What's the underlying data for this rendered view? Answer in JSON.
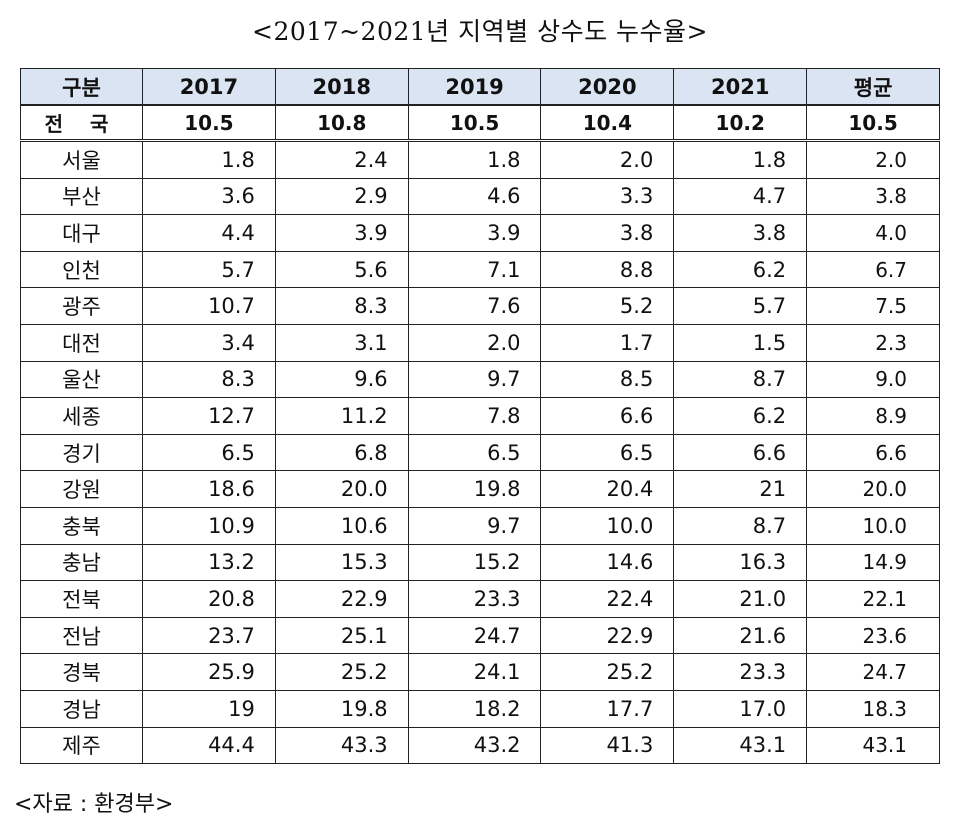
{
  "title": "<2017~2021년 지역별 상수도 누수율>",
  "headers": [
    "구분",
    "2017",
    "2018",
    "2019",
    "2020",
    "2021",
    "평균"
  ],
  "total": {
    "label": "전 국",
    "values": [
      "10.5",
      "10.8",
      "10.5",
      "10.4",
      "10.2",
      "10.5"
    ]
  },
  "rows": [
    {
      "label": "서울",
      "values": [
        "1.8",
        "2.4",
        "1.8",
        "2.0",
        "1.8",
        "2.0"
      ]
    },
    {
      "label": "부산",
      "values": [
        "3.6",
        "2.9",
        "4.6",
        "3.3",
        "4.7",
        "3.8"
      ]
    },
    {
      "label": "대구",
      "values": [
        "4.4",
        "3.9",
        "3.9",
        "3.8",
        "3.8",
        "4.0"
      ]
    },
    {
      "label": "인천",
      "values": [
        "5.7",
        "5.6",
        "7.1",
        "8.8",
        "6.2",
        "6.7"
      ]
    },
    {
      "label": "광주",
      "values": [
        "10.7",
        "8.3",
        "7.6",
        "5.2",
        "5.7",
        "7.5"
      ]
    },
    {
      "label": "대전",
      "values": [
        "3.4",
        "3.1",
        "2.0",
        "1.7",
        "1.5",
        "2.3"
      ]
    },
    {
      "label": "울산",
      "values": [
        "8.3",
        "9.6",
        "9.7",
        "8.5",
        "8.7",
        "9.0"
      ]
    },
    {
      "label": "세종",
      "values": [
        "12.7",
        "11.2",
        "7.8",
        "6.6",
        "6.2",
        "8.9"
      ]
    },
    {
      "label": "경기",
      "values": [
        "6.5",
        "6.8",
        "6.5",
        "6.5",
        "6.6",
        "6.6"
      ]
    },
    {
      "label": "강원",
      "values": [
        "18.6",
        "20.0",
        "19.8",
        "20.4",
        "21",
        "20.0"
      ]
    },
    {
      "label": "충북",
      "values": [
        "10.9",
        "10.6",
        "9.7",
        "10.0",
        "8.7",
        "10.0"
      ]
    },
    {
      "label": "충남",
      "values": [
        "13.2",
        "15.3",
        "15.2",
        "14.6",
        "16.3",
        "14.9"
      ]
    },
    {
      "label": "전북",
      "values": [
        "20.8",
        "22.9",
        "23.3",
        "22.4",
        "21.0",
        "22.1"
      ]
    },
    {
      "label": "전남",
      "values": [
        "23.7",
        "25.1",
        "24.7",
        "22.9",
        "21.6",
        "23.6"
      ]
    },
    {
      "label": "경북",
      "values": [
        "25.9",
        "25.2",
        "24.1",
        "25.2",
        "23.3",
        "24.7"
      ]
    },
    {
      "label": "경남",
      "values": [
        "19",
        "19.8",
        "18.2",
        "17.7",
        "17.0",
        "18.3"
      ]
    },
    {
      "label": "제주",
      "values": [
        "44.4",
        "43.3",
        "43.2",
        "41.3",
        "43.1",
        "43.1"
      ]
    }
  ],
  "source": "<자료 : 환경부>"
}
